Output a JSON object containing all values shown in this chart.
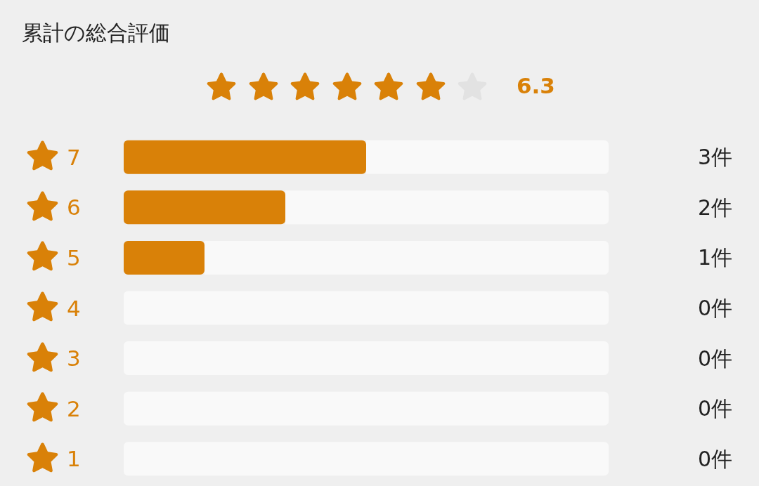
{
  "chart_data": {
    "type": "bar",
    "orientation": "horizontal",
    "stacked": true,
    "title": "累計の総合評価",
    "annotations": [
      "6.3"
    ],
    "categories": [
      "7",
      "6",
      "5",
      "4",
      "3",
      "2",
      "1"
    ],
    "series": [
      {
        "color": "#d98108",
        "values": [
          3,
          2,
          1,
          0,
          0,
          0,
          0
        ],
        "value_labels": [
          "3件",
          "2件",
          "1件",
          "0件",
          "0件",
          "0件",
          "0件"
        ]
      },
      {
        "color": "#f9f9f9",
        "values": [
          3,
          4,
          5,
          6,
          6,
          6,
          6
        ]
      }
    ],
    "xlim": [
      0,
      6
    ],
    "tick_labels": "y"
  }
}
